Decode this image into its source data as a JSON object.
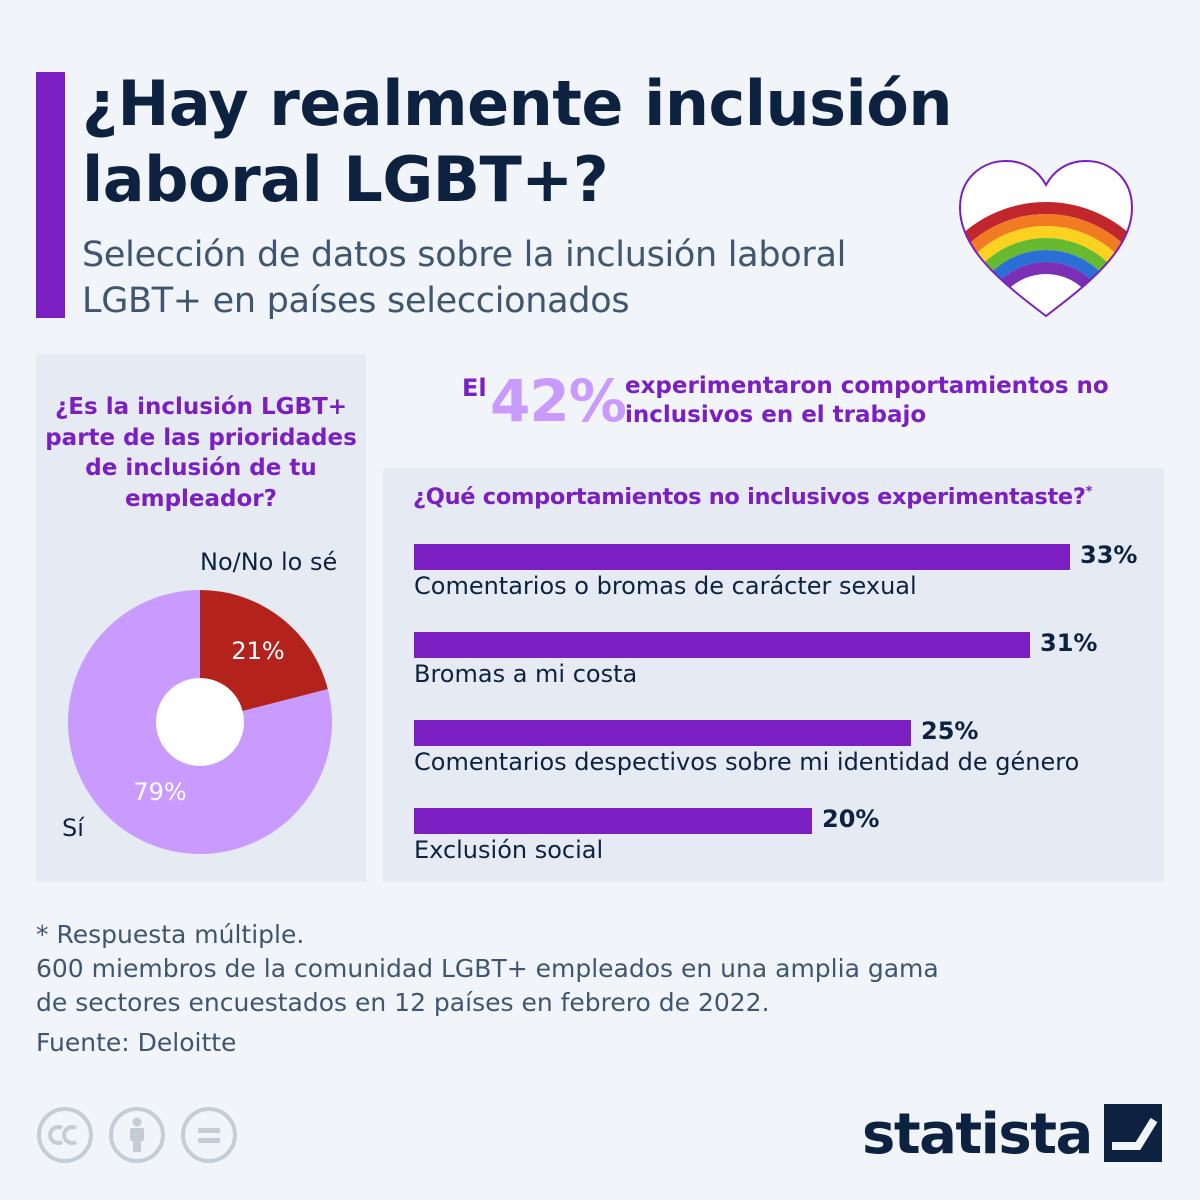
{
  "header": {
    "title": "¿Hay realmente inclusión laboral LGBT+?",
    "subtitle": "Selección de datos sobre la inclusión laboral LGBT+ en países seleccionados"
  },
  "pie_section": {
    "question": "¿Es la inclusión LGBT+ parte de las prioridades de inclusión de tu empleador?",
    "no_label": "No/No lo sé",
    "yes_label": "Sí",
    "no_pct_label": "21%",
    "yes_pct_label": "79%"
  },
  "highlight": {
    "prefix": "El",
    "value": "42%",
    "text": "experimentaron comportamientos no inclusivos en el trabajo"
  },
  "bar_section": {
    "question": "¿Qué comportamientos no inclusivos experimentaste?",
    "question_mark": "*",
    "items": [
      {
        "label": "Comentarios o bromas de carácter sexual",
        "value_label": "33%"
      },
      {
        "label": "Bromas a mi costa",
        "value_label": "31%"
      },
      {
        "label": "Comentarios despectivos sobre mi identidad de género",
        "value_label": "25%"
      },
      {
        "label": "Exclusión social",
        "value_label": "20%"
      }
    ]
  },
  "notes": {
    "multiple": "* Respuesta múltiple.",
    "survey_line1": "600 miembros de la comunidad LGBT+ empleados en una amplia gama",
    "survey_line2": "de sectores encuestados en 12 países en febrero de 2022.",
    "source": "Fuente: Deloitte"
  },
  "footer": {
    "brand": "statista",
    "icons": [
      "cc-icon",
      "attribution-icon",
      "no-derivatives-icon"
    ]
  },
  "colors": {
    "accent": "#7b1fc2",
    "pie_no": "#b3231c",
    "pie_yes": "#c99bff",
    "highlight_number": "#c99bff",
    "text_dark": "#0d2240"
  },
  "chart_data": [
    {
      "type": "pie",
      "categories": [
        "No/No lo sé",
        "Sí"
      ],
      "values": [
        21,
        79
      ],
      "title": "¿Es la inclusión LGBT+ parte de las prioridades de inclusión de tu empleador?"
    },
    {
      "type": "bar",
      "categories": [
        "Comentarios o bromas de carácter sexual",
        "Bromas a mi costa",
        "Comentarios despectivos sobre mi identidad de género",
        "Exclusión social"
      ],
      "values": [
        33,
        31,
        25,
        20
      ],
      "title": "¿Qué comportamientos no inclusivos experimentaste?"
    }
  ]
}
